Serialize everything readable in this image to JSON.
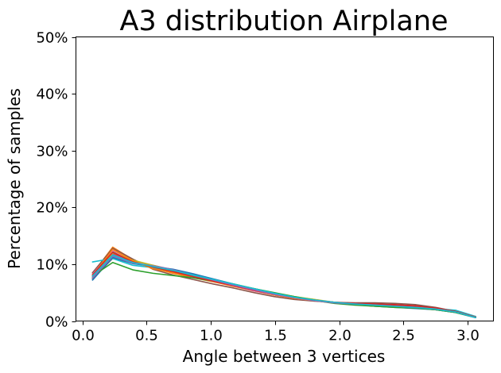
{
  "chart_data": {
    "type": "line",
    "title": "A3 distribution Airplane",
    "xlabel": "Angle between 3 vertices",
    "ylabel": "Percentage of samples",
    "xlim": [
      -0.05,
      3.2
    ],
    "ylim": [
      0,
      50
    ],
    "xticks": [
      0.0,
      0.5,
      1.0,
      1.5,
      2.0,
      2.5,
      3.0
    ],
    "xtick_labels": [
      "0.0",
      "0.5",
      "1.0",
      "1.5",
      "2.0",
      "2.5",
      "3.0"
    ],
    "yticks": [
      0,
      10,
      20,
      30,
      40,
      50
    ],
    "ytick_labels": [
      "0%",
      "10%",
      "20%",
      "30%",
      "40%",
      "50%"
    ],
    "grid": false,
    "legend": "none",
    "x": [
      0.079,
      0.236,
      0.393,
      0.55,
      0.707,
      0.864,
      1.021,
      1.178,
      1.335,
      1.492,
      1.649,
      1.806,
      1.963,
      2.12,
      2.277,
      2.434,
      2.591,
      2.748,
      2.905,
      3.062
    ],
    "series": [
      {
        "color": "#1f77b4",
        "values": [
          7.5,
          11.5,
          10.3,
          9.7,
          8.9,
          8.0,
          7.0,
          6.2,
          5.4,
          4.7,
          4.1,
          3.7,
          3.2,
          2.9,
          2.6,
          2.4,
          2.2,
          2.0,
          1.5,
          0.6
        ]
      },
      {
        "color": "#ff7f0e",
        "values": [
          8.3,
          13.0,
          10.8,
          9.3,
          8.4,
          7.6,
          6.9,
          6.1,
          5.3,
          4.6,
          4.0,
          3.6,
          3.2,
          3.0,
          2.9,
          2.8,
          2.6,
          2.3,
          1.6,
          0.7
        ]
      },
      {
        "color": "#2ca02c",
        "values": [
          8.0,
          12.3,
          10.6,
          9.5,
          8.6,
          7.9,
          7.2,
          6.5,
          5.7,
          4.9,
          4.2,
          3.6,
          3.1,
          2.8,
          2.6,
          2.5,
          2.3,
          2.1,
          1.6,
          0.7
        ]
      },
      {
        "color": "#d62728",
        "values": [
          7.6,
          11.9,
          10.5,
          9.6,
          8.8,
          8.0,
          7.1,
          6.3,
          5.4,
          4.6,
          4.0,
          3.6,
          3.3,
          3.1,
          3.0,
          2.9,
          2.7,
          2.3,
          1.7,
          0.7
        ]
      },
      {
        "color": "#9467bd",
        "values": [
          7.8,
          11.7,
          10.4,
          9.8,
          9.0,
          8.2,
          7.3,
          6.4,
          5.5,
          4.7,
          4.1,
          3.6,
          3.2,
          2.9,
          2.7,
          2.5,
          2.3,
          2.1,
          1.6,
          0.6
        ]
      },
      {
        "color": "#8c564b",
        "values": [
          8.5,
          12.8,
          10.9,
          9.1,
          8.1,
          7.3,
          6.5,
          5.8,
          5.0,
          4.3,
          3.8,
          3.5,
          3.3,
          3.2,
          3.2,
          3.1,
          2.9,
          2.4,
          1.7,
          0.7
        ]
      },
      {
        "color": "#e377c2",
        "values": [
          8.2,
          12.4,
          10.6,
          9.6,
          8.8,
          7.9,
          7.0,
          6.2,
          5.3,
          4.6,
          4.0,
          3.6,
          3.3,
          3.1,
          2.9,
          2.7,
          2.5,
          2.2,
          1.6,
          0.6
        ]
      },
      {
        "color": "#7f7f7f",
        "values": [
          7.4,
          11.0,
          10.2,
          9.7,
          9.0,
          8.2,
          7.3,
          6.4,
          5.5,
          4.8,
          4.2,
          3.7,
          3.3,
          3.0,
          2.8,
          2.6,
          2.4,
          2.1,
          1.6,
          0.6
        ]
      },
      {
        "color": "#bcbd22",
        "values": [
          7.7,
          12.0,
          10.7,
          9.8,
          8.9,
          8.0,
          7.2,
          6.5,
          5.7,
          4.9,
          4.3,
          3.8,
          3.3,
          3.0,
          2.8,
          2.6,
          2.4,
          2.1,
          1.6,
          0.7
        ]
      },
      {
        "color": "#17becf",
        "values": [
          10.4,
          11.0,
          9.8,
          9.4,
          8.8,
          8.0,
          7.2,
          6.4,
          5.6,
          4.9,
          4.2,
          3.7,
          3.3,
          3.0,
          2.8,
          2.6,
          2.4,
          2.2,
          1.9,
          0.8
        ]
      },
      {
        "color": "#1f77b4",
        "values": [
          7.2,
          11.2,
          10.1,
          9.6,
          9.1,
          8.3,
          7.4,
          6.5,
          5.6,
          4.8,
          4.1,
          3.6,
          3.2,
          2.9,
          2.7,
          2.5,
          2.3,
          2.0,
          1.5,
          0.6
        ]
      },
      {
        "color": "#ff7f0e",
        "values": [
          8.0,
          12.6,
          10.6,
          9.2,
          8.5,
          7.8,
          7.0,
          6.2,
          5.4,
          4.6,
          4.0,
          3.6,
          3.2,
          3.0,
          2.8,
          2.7,
          2.5,
          2.2,
          1.6,
          0.7
        ]
      },
      {
        "color": "#2ca02c",
        "values": [
          7.9,
          10.3,
          9.0,
          8.4,
          8.0,
          7.6,
          7.0,
          6.4,
          5.7,
          5.0,
          4.3,
          3.7,
          3.2,
          2.9,
          2.6,
          2.4,
          2.3,
          2.0,
          1.5,
          0.6
        ]
      },
      {
        "color": "#d62728",
        "values": [
          8.1,
          12.1,
          10.4,
          9.5,
          8.7,
          7.8,
          7.0,
          6.2,
          5.4,
          4.7,
          4.1,
          3.7,
          3.3,
          3.1,
          3.0,
          2.8,
          2.6,
          2.3,
          1.7,
          0.7
        ]
      },
      {
        "color": "#9467bd",
        "values": [
          7.6,
          11.4,
          10.2,
          9.7,
          9.0,
          8.1,
          7.2,
          6.3,
          5.5,
          4.7,
          4.1,
          3.6,
          3.2,
          3.0,
          2.8,
          2.6,
          2.4,
          2.1,
          1.6,
          0.6
        ]
      },
      {
        "color": "#17becf",
        "values": [
          7.9,
          11.6,
          10.3,
          9.6,
          8.9,
          8.1,
          7.3,
          6.5,
          5.7,
          4.9,
          4.2,
          3.7,
          3.3,
          3.0,
          2.8,
          2.6,
          2.4,
          2.1,
          1.6,
          0.6
        ]
      }
    ]
  }
}
